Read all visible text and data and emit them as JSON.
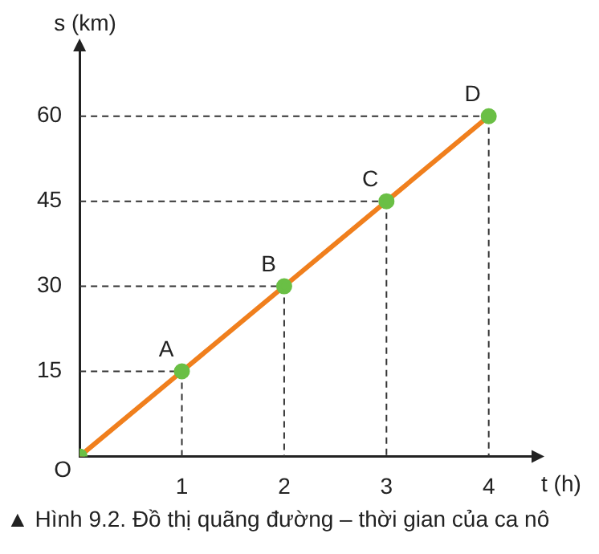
{
  "chart_data": {
    "type": "line",
    "xlabel": "t (h)",
    "ylabel": "s (km)",
    "x": [
      0,
      1,
      2,
      3,
      4
    ],
    "series": [
      {
        "color": "#f07f1d",
        "values": [
          0,
          15,
          30,
          45,
          60
        ]
      }
    ],
    "xlim": [
      0,
      4.45
    ],
    "ylim": [
      0,
      72
    ],
    "xticks": [
      1,
      2,
      3,
      4
    ],
    "yticks": [
      15,
      30,
      45,
      60
    ],
    "grid": true,
    "marker": "circle",
    "line_style": "solid",
    "legend": false,
    "annotations": [
      {
        "text": "O",
        "x": 0,
        "y": 0
      },
      {
        "text": "A",
        "x": 1,
        "y": 15
      },
      {
        "text": "B",
        "x": 2,
        "y": 30
      },
      {
        "text": "C",
        "x": 3,
        "y": 45
      },
      {
        "text": "D",
        "x": 4,
        "y": 60
      },
      "▲ Hình 9.2. Đồ thị quãng đường – thời gian của ca nô"
    ]
  }
}
